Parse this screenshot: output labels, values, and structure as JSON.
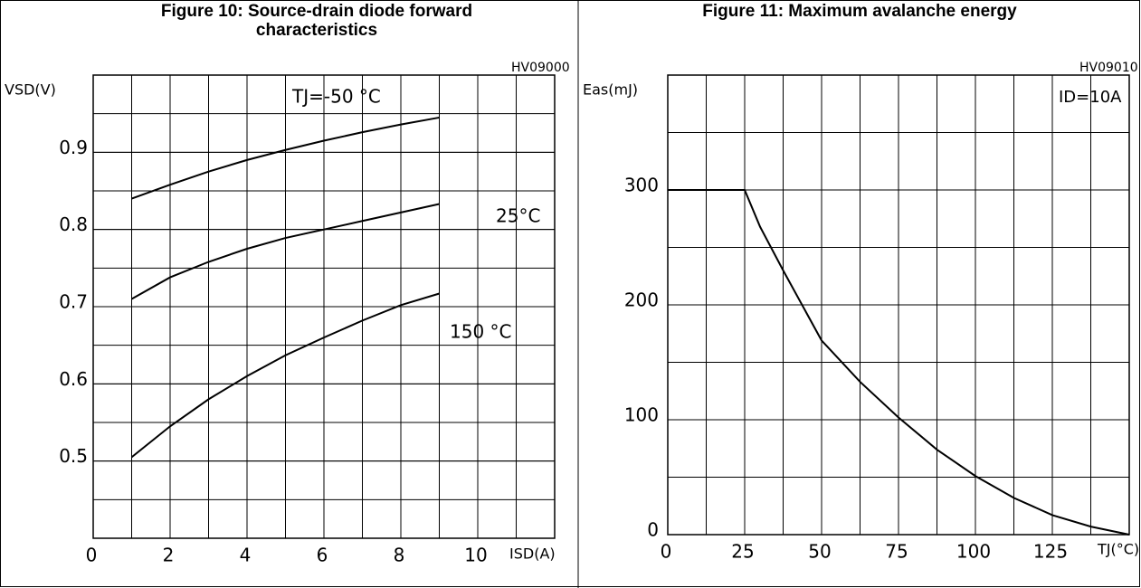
{
  "chart_data": [
    {
      "type": "line",
      "title": "Figure 10: Source-drain diode forward characteristics",
      "code": "HV09000",
      "xlabel": "ISD(A)",
      "ylabel": "VSD(V)",
      "x": [
        1,
        2,
        3,
        4,
        5,
        6,
        7,
        8,
        9
      ],
      "series": [
        {
          "name": "TJ=-50 °C",
          "color": "#000000",
          "values": [
            0.84,
            0.858,
            0.875,
            0.89,
            0.903,
            0.915,
            0.926,
            0.936,
            0.945
          ]
        },
        {
          "name": "25°C",
          "color": "#000000",
          "values": [
            0.71,
            0.738,
            0.758,
            0.775,
            0.789,
            0.8,
            0.811,
            0.822,
            0.833
          ]
        },
        {
          "name": "150 °C",
          "color": "#000000",
          "values": [
            0.505,
            0.545,
            0.58,
            0.61,
            0.637,
            0.66,
            0.682,
            0.702,
            0.717
          ]
        }
      ],
      "xlim": [
        0,
        12
      ],
      "xticks": [
        0,
        2,
        4,
        6,
        8,
        10
      ],
      "ylim": [
        0.4,
        1.0
      ],
      "yticks": [
        0.5,
        0.6,
        0.7,
        0.8,
        0.9
      ],
      "grid": true
    },
    {
      "type": "line",
      "title": "Figure 11: Maximum avalanche energy",
      "code": "HV09010",
      "xlabel": "TJ(°C)",
      "ylabel": "Eas(mJ)",
      "annotation": "ID=10A",
      "x": [
        0,
        25,
        30,
        37.5,
        50,
        62.5,
        75,
        87.5,
        100,
        112.5,
        125,
        137.5,
        150
      ],
      "series": [
        {
          "color": "#000000",
          "values": [
            300,
            300,
            268,
            230,
            169,
            133,
            102,
            74,
            51,
            32,
            17,
            7,
            0
          ]
        }
      ],
      "xlim": [
        0,
        150
      ],
      "xticks": [
        0,
        25,
        50,
        75,
        100,
        125
      ],
      "ylim": [
        0,
        400
      ],
      "yticks": [
        0,
        100,
        200,
        300
      ],
      "grid": true
    }
  ]
}
